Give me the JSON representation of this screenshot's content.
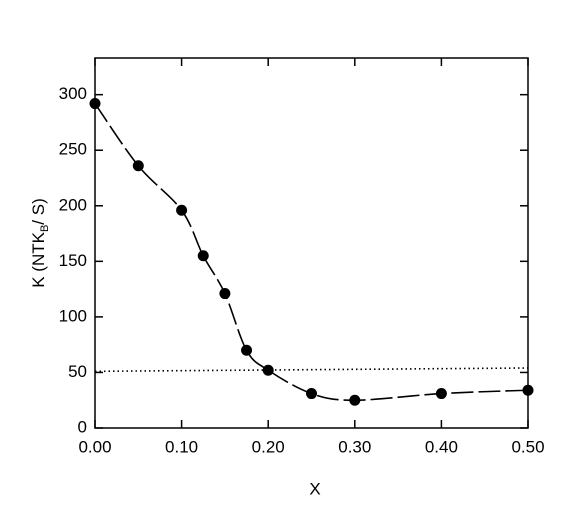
{
  "chart_data": {
    "type": "scatter",
    "x_label": "X",
    "y_label": {
      "main": "K  (NTK",
      "sub": "B",
      "end": "/ S)"
    },
    "xlim": [
      0,
      0.5
    ],
    "xticks": [
      {
        "value": 0,
        "label": "0.00"
      },
      {
        "value": 0.1,
        "label": "0.10"
      },
      {
        "value": 0.2,
        "label": "0.20"
      },
      {
        "value": 0.3,
        "label": "0.30"
      },
      {
        "value": 0.4,
        "label": "0.40"
      },
      {
        "value": 0.5,
        "label": "0.50"
      }
    ],
    "ylim": [
      0,
      333
    ],
    "yticks": [
      0,
      50,
      100,
      150,
      200,
      250,
      300
    ],
    "series": [
      {
        "color": "#000000",
        "x": [
          0,
          0.05,
          0.1,
          0.125,
          0.15,
          0.175,
          0.2,
          0.25,
          0.3,
          0.4,
          0.5
        ],
        "values": [
          292,
          236,
          196,
          155,
          121,
          70,
          52,
          31,
          25,
          31,
          34
        ],
        "line": "dashed-smooth",
        "markers": true
      },
      {
        "color": "#000000",
        "x": [
          0,
          0.5
        ],
        "values": [
          51,
          54
        ],
        "line": "dotted",
        "markers": false
      }
    ]
  }
}
